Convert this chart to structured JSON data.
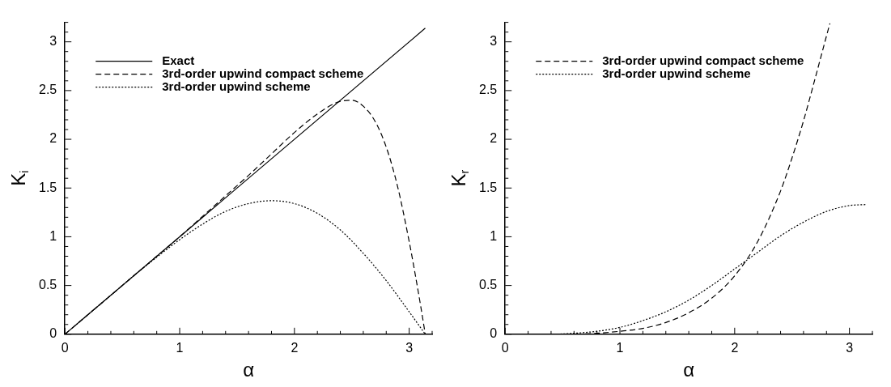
{
  "chart_data": [
    {
      "type": "line",
      "xlabel": "α",
      "ylabel": "K$_{i}$",
      "xlim": [
        0,
        3.2
      ],
      "ylim": [
        0,
        3.2
      ],
      "xticks": [
        0,
        {
          "value": 0.2,
          "label": null
        },
        {
          "value": 0.4,
          "label": null
        },
        {
          "value": 0.6,
          "label": null
        },
        {
          "value": 0.8,
          "label": null
        },
        1,
        {
          "value": 1.2,
          "label": null
        },
        {
          "value": 1.4,
          "label": null
        },
        {
          "value": 1.6,
          "label": null
        },
        {
          "value": 1.8,
          "label": null
        },
        2,
        {
          "value": 2.2,
          "label": null
        },
        {
          "value": 2.4,
          "label": null
        },
        {
          "value": 2.6,
          "label": null
        },
        {
          "value": 2.8,
          "label": null
        },
        3,
        {
          "value": 3.2,
          "label": null
        }
      ],
      "yticks": [
        0,
        {
          "value": 0.1,
          "label": null
        },
        {
          "value": 0.2,
          "label": null
        },
        {
          "value": 0.3,
          "label": null
        },
        {
          "value": 0.4,
          "label": null
        },
        0.5,
        {
          "value": 0.6,
          "label": null
        },
        {
          "value": 0.7,
          "label": null
        },
        {
          "value": 0.8,
          "label": null
        },
        {
          "value": 0.9,
          "label": null
        },
        1,
        {
          "value": 1.1,
          "label": null
        },
        {
          "value": 1.2,
          "label": null
        },
        {
          "value": 1.3,
          "label": null
        },
        {
          "value": 1.4,
          "label": null
        },
        1.5,
        {
          "value": 1.6,
          "label": null
        },
        {
          "value": 1.7,
          "label": null
        },
        {
          "value": 1.8,
          "label": null
        },
        {
          "value": 1.9,
          "label": null
        },
        2,
        {
          "value": 2.1,
          "label": null
        },
        {
          "value": 2.2,
          "label": null
        },
        {
          "value": 2.3,
          "label": null
        },
        {
          "value": 2.4,
          "label": null
        },
        2.5,
        {
          "value": 2.6,
          "label": null
        },
        {
          "value": 2.7,
          "label": null
        },
        {
          "value": 2.8,
          "label": null
        },
        {
          "value": 2.9,
          "label": null
        },
        3,
        {
          "value": 3.1,
          "label": null
        },
        {
          "value": 3.2,
          "label": null
        }
      ],
      "legend": "top left",
      "series": [
        {
          "name": "Exact",
          "color": "#000000",
          "line_style": "solid",
          "x": [
            0,
            3.14
          ],
          "values": [
            0,
            3.14
          ]
        },
        {
          "name": "3rd-order upwind compact scheme",
          "color": "#000000",
          "line_style": "dashed",
          "x": [
            0,
            0.2,
            0.4,
            0.6,
            0.8,
            1.0,
            1.2,
            1.4,
            1.6,
            1.8,
            2.0,
            2.2,
            2.4,
            2.5,
            2.6,
            2.7,
            2.8,
            2.9,
            3.0,
            3.05,
            3.1,
            3.14
          ],
          "values": [
            0,
            0.2,
            0.4,
            0.6,
            0.8,
            1.0,
            1.21,
            1.42,
            1.63,
            1.85,
            2.07,
            2.26,
            2.39,
            2.4,
            2.34,
            2.19,
            1.92,
            1.51,
            0.95,
            0.63,
            0.29,
            0
          ]
        },
        {
          "name": "3rd-order upwind scheme",
          "color": "#000000",
          "line_style": "dotted",
          "x": [
            0.1,
            0.2,
            0.4,
            0.6,
            0.8,
            1.0,
            1.2,
            1.4,
            1.6,
            1.8,
            2.0,
            2.2,
            2.4,
            2.6,
            2.8,
            3.0,
            3.14
          ],
          "values": [
            0.1,
            0.2,
            0.4,
            0.6,
            0.79,
            0.97,
            1.13,
            1.26,
            1.34,
            1.37,
            1.34,
            1.24,
            1.07,
            0.83,
            0.55,
            0.23,
            0
          ]
        }
      ]
    },
    {
      "type": "line",
      "xlabel": "α",
      "ylabel": "K$_{r}$",
      "xlim": [
        0,
        3.2
      ],
      "ylim": [
        0,
        3.2
      ],
      "xticks": [
        0,
        {
          "value": 0.2,
          "label": null
        },
        {
          "value": 0.4,
          "label": null
        },
        {
          "value": 0.6,
          "label": null
        },
        {
          "value": 0.8,
          "label": null
        },
        1,
        {
          "value": 1.2,
          "label": null
        },
        {
          "value": 1.4,
          "label": null
        },
        {
          "value": 1.6,
          "label": null
        },
        {
          "value": 1.8,
          "label": null
        },
        2,
        {
          "value": 2.2,
          "label": null
        },
        {
          "value": 2.4,
          "label": null
        },
        {
          "value": 2.6,
          "label": null
        },
        {
          "value": 2.8,
          "label": null
        },
        3,
        {
          "value": 3.2,
          "label": null
        }
      ],
      "yticks": [
        0,
        {
          "value": 0.1,
          "label": null
        },
        {
          "value": 0.2,
          "label": null
        },
        {
          "value": 0.3,
          "label": null
        },
        {
          "value": 0.4,
          "label": null
        },
        0.5,
        {
          "value": 0.6,
          "label": null
        },
        {
          "value": 0.7,
          "label": null
        },
        {
          "value": 0.8,
          "label": null
        },
        {
          "value": 0.9,
          "label": null
        },
        1,
        {
          "value": 1.1,
          "label": null
        },
        {
          "value": 1.2,
          "label": null
        },
        {
          "value": 1.3,
          "label": null
        },
        {
          "value": 1.4,
          "label": null
        },
        1.5,
        {
          "value": 1.6,
          "label": null
        },
        {
          "value": 1.7,
          "label": null
        },
        {
          "value": 1.8,
          "label": null
        },
        {
          "value": 1.9,
          "label": null
        },
        2,
        {
          "value": 2.1,
          "label": null
        },
        {
          "value": 2.2,
          "label": null
        },
        {
          "value": 2.3,
          "label": null
        },
        {
          "value": 2.4,
          "label": null
        },
        2.5,
        {
          "value": 2.6,
          "label": null
        },
        {
          "value": 2.7,
          "label": null
        },
        {
          "value": 2.8,
          "label": null
        },
        {
          "value": 2.9,
          "label": null
        },
        3,
        {
          "value": 3.1,
          "label": null
        },
        {
          "value": 3.2,
          "label": null
        }
      ],
      "legend": "top left",
      "series": [
        {
          "name": "3rd-order upwind compact scheme",
          "color": "#000000",
          "line_style": "dashed",
          "x": [
            0,
            0.2,
            0.4,
            0.6,
            0.8,
            1.0,
            1.2,
            1.4,
            1.6,
            1.8,
            2.0,
            2.2,
            2.4,
            2.5,
            2.6,
            2.7,
            2.8,
            2.83
          ],
          "values": [
            0,
            0,
            0,
            0,
            0.01,
            0.03,
            0.06,
            0.12,
            0.22,
            0.37,
            0.6,
            0.95,
            1.47,
            1.81,
            2.19,
            2.62,
            3.06,
            3.19
          ]
        },
        {
          "name": "3rd-order upwind scheme",
          "color": "#000000",
          "line_style": "dotted",
          "x": [
            0,
            0.2,
            0.4,
            0.6,
            0.8,
            1.0,
            1.2,
            1.4,
            1.6,
            1.8,
            2.0,
            2.2,
            2.4,
            2.6,
            2.8,
            3.0,
            3.14
          ],
          "values": [
            0,
            0,
            0,
            0.01,
            0.03,
            0.07,
            0.14,
            0.23,
            0.35,
            0.5,
            0.67,
            0.84,
            1.01,
            1.15,
            1.26,
            1.32,
            1.33
          ]
        }
      ]
    }
  ]
}
